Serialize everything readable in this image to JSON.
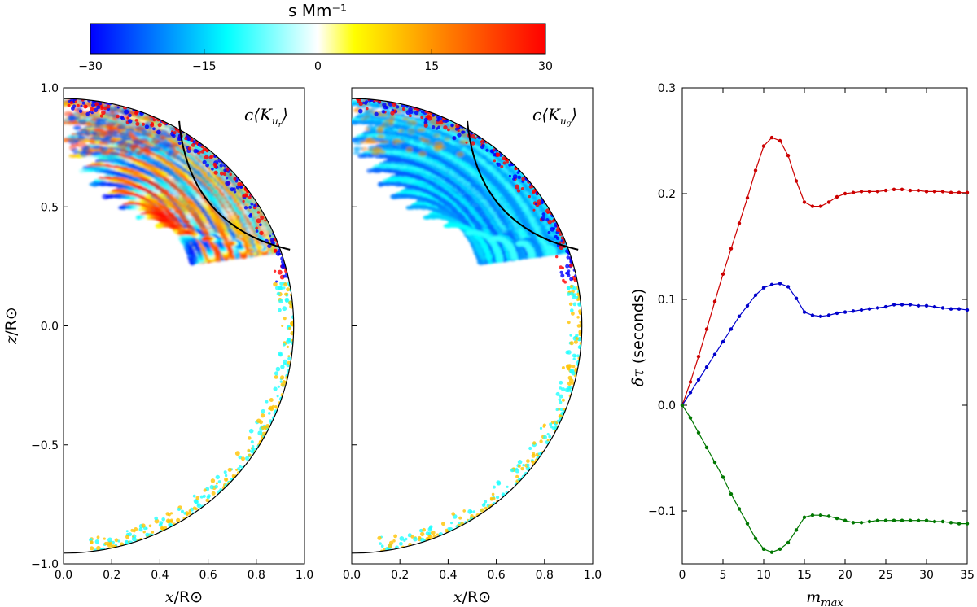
{
  "colorbar": {
    "title": "s Mm⁻¹",
    "ticks": [
      -30,
      -15,
      0,
      15,
      30
    ],
    "tick_labels": [
      "−30",
      "−15",
      "0",
      "15",
      "30"
    ],
    "colors": [
      "#0000ff",
      "#00ffff",
      "#ffffff",
      "#ffff00",
      "#ff8000",
      "#ff0000"
    ]
  },
  "chart_data": [
    {
      "type": "heatmap",
      "title": "",
      "panel_label_main": "c⟨K",
      "panel_label_sub": "u",
      "panel_label_subsub": "r",
      "panel_label_close": "⟩",
      "xlabel_var": "x",
      "xlabel_unit": "/R⊙",
      "ylabel_var": "z",
      "ylabel_unit": "/R⊙",
      "xlim": [
        0.0,
        1.0
      ],
      "ylim": [
        -1.0,
        1.0
      ],
      "x_ticks": [
        "0.0",
        "0.2",
        "0.4",
        "0.6",
        "0.8",
        "1.0"
      ],
      "y_ticks": [
        "−1.0",
        "−0.5",
        "0.0",
        "0.5",
        "1.0"
      ],
      "source_point": [
        0.94,
        0.32
      ],
      "receiver_point": [
        0.48,
        0.86
      ]
    },
    {
      "type": "heatmap",
      "title": "",
      "panel_label_main": "c⟨K",
      "panel_label_sub": "u",
      "panel_label_subsub": "θ",
      "panel_label_close": "⟩",
      "xlabel_var": "x",
      "xlabel_unit": "/R⊙",
      "xlim": [
        0.0,
        1.0
      ],
      "ylim": [
        -1.0,
        1.0
      ],
      "x_ticks": [
        "0.0",
        "0.2",
        "0.4",
        "0.6",
        "0.8",
        "1.0"
      ],
      "source_point": [
        0.94,
        0.32
      ],
      "receiver_point": [
        0.48,
        0.86
      ]
    },
    {
      "type": "line",
      "title": "",
      "xlabel": "m",
      "xlabel_sub": "max",
      "ylabel_greek": "δτ",
      "ylabel_rest": " (seconds)",
      "xlim": [
        0,
        35
      ],
      "ylim": [
        -0.15,
        0.3
      ],
      "x_ticks": [
        0,
        5,
        10,
        15,
        20,
        25,
        30,
        35
      ],
      "x_tick_labels": [
        "0",
        "5",
        "10",
        "15",
        "20",
        "25",
        "30",
        "35"
      ],
      "y_ticks": [
        -0.1,
        0.0,
        0.1,
        0.2,
        0.3
      ],
      "y_tick_labels": [
        "−0.1",
        "0.0",
        "0.1",
        "0.2",
        "0.3"
      ],
      "x": [
        0,
        1,
        2,
        3,
        4,
        5,
        6,
        7,
        8,
        9,
        10,
        11,
        12,
        13,
        14,
        15,
        16,
        17,
        18,
        19,
        20,
        21,
        22,
        23,
        24,
        25,
        26,
        27,
        28,
        29,
        30,
        31,
        32,
        33,
        34,
        35
      ],
      "series": [
        {
          "name": "red",
          "color": "#cc0000",
          "values": [
            0.0,
            0.022,
            0.046,
            0.072,
            0.098,
            0.124,
            0.148,
            0.172,
            0.196,
            0.222,
            0.245,
            0.253,
            0.25,
            0.236,
            0.212,
            0.192,
            0.188,
            0.188,
            0.192,
            0.197,
            0.2,
            0.201,
            0.202,
            0.202,
            0.202,
            0.203,
            0.204,
            0.204,
            0.203,
            0.203,
            0.202,
            0.202,
            0.202,
            0.201,
            0.201,
            0.201
          ]
        },
        {
          "name": "blue",
          "color": "#0000cc",
          "values": [
            0.0,
            0.012,
            0.024,
            0.036,
            0.048,
            0.06,
            0.072,
            0.084,
            0.094,
            0.104,
            0.111,
            0.114,
            0.115,
            0.112,
            0.101,
            0.088,
            0.085,
            0.084,
            0.085,
            0.087,
            0.088,
            0.089,
            0.09,
            0.091,
            0.092,
            0.093,
            0.095,
            0.095,
            0.095,
            0.094,
            0.094,
            0.093,
            0.092,
            0.091,
            0.091,
            0.09
          ]
        },
        {
          "name": "green",
          "color": "#007700",
          "values": [
            0.0,
            -0.012,
            -0.026,
            -0.04,
            -0.054,
            -0.068,
            -0.084,
            -0.098,
            -0.112,
            -0.126,
            -0.136,
            -0.139,
            -0.136,
            -0.13,
            -0.118,
            -0.106,
            -0.104,
            -0.104,
            -0.105,
            -0.107,
            -0.109,
            -0.111,
            -0.111,
            -0.11,
            -0.109,
            -0.109,
            -0.109,
            -0.109,
            -0.109,
            -0.109,
            -0.109,
            -0.11,
            -0.11,
            -0.111,
            -0.112,
            -0.112
          ]
        }
      ]
    }
  ]
}
